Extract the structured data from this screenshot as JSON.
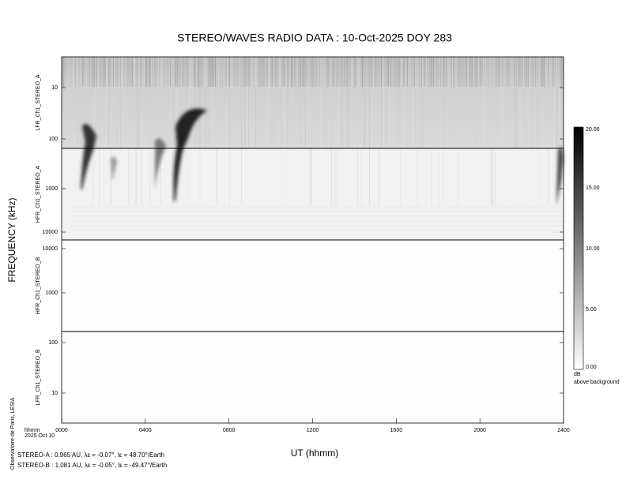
{
  "title": "STEREO/WAVES  RADIO  DATA : 10-Oct-2025  DOY 283",
  "y_axis_label": "FREQUENCY (kHz)",
  "x_axis_label": "UT (hhmm)",
  "x_ticks": [
    "0000",
    "0400",
    "0800",
    "1200",
    "1600",
    "2000",
    "2400"
  ],
  "x_corner": [
    "hhmm",
    "2025  Oct  10"
  ],
  "panels": [
    {
      "label": "LFR_Ch1_STEREO_A",
      "ticks": [
        "10",
        "100"
      ]
    },
    {
      "label": "HFR_Ch1_STEREO_A",
      "ticks": [
        "1000",
        "10000"
      ]
    },
    {
      "label": "HFR_Ch1_STEREO_B",
      "ticks": [
        "10000",
        "1000"
      ]
    },
    {
      "label": "LFR_Ch1_STEREO_B",
      "ticks": [
        "100",
        "10"
      ]
    }
  ],
  "colorbar": {
    "ticks": [
      "20.00",
      "15.00",
      "10.00",
      "5.00",
      "0.00"
    ],
    "unit": "dB",
    "caption": "above background"
  },
  "credit": "Observatoire de Paris, LESIA",
  "ephemeris": [
    "STEREO-A : 0.965 AU, λε = -0.07°, lε = 48.70°/Earth",
    "STEREO-B : 1.081 AU, λε = -0.05°, lε = -49.47°/Earth"
  ]
}
